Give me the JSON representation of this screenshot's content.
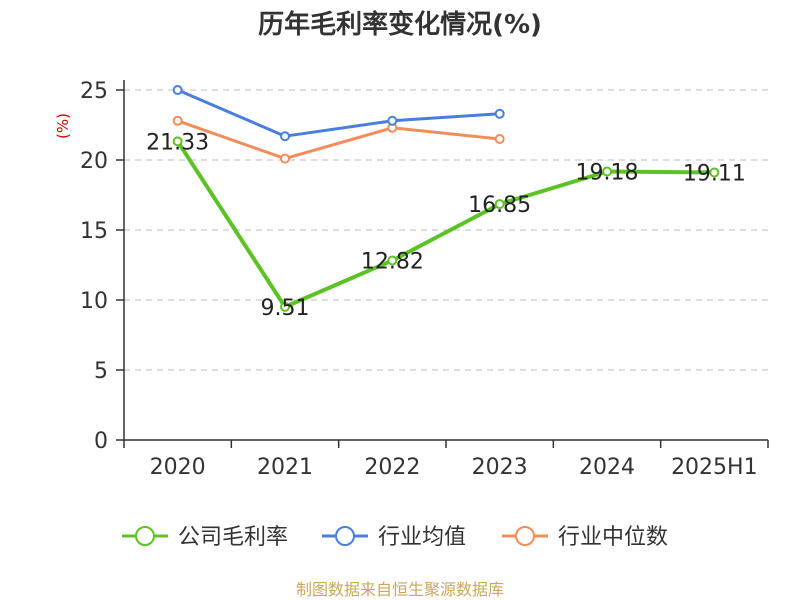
{
  "title": "历年毛利率变化情况(%)",
  "source": "制图数据来自恒生聚源数据库",
  "colors": {
    "company": "#5cc226",
    "industry_avg": "#4a7fd9",
    "industry_median": "#f28c5a",
    "grid": "#bbbbbb",
    "axis": "#333333",
    "unit": "#cc0000",
    "source": "#c8a85a"
  },
  "chart_data": {
    "type": "line",
    "title": "历年毛利率变化情况(%)",
    "ylabel": "(%)",
    "xlabel": "",
    "categories": [
      "2020",
      "2021",
      "2022",
      "2023",
      "2024",
      "2025H1"
    ],
    "ylim": [
      0,
      25
    ],
    "yticks": [
      0,
      5,
      10,
      15,
      20,
      25
    ],
    "grid": true,
    "legend_position": "bottom",
    "series": [
      {
        "name": "公司毛利率",
        "color": "#5cc226",
        "values": [
          21.33,
          9.51,
          12.82,
          16.85,
          19.18,
          19.11
        ],
        "labels": [
          "21.33",
          "9.51",
          "12.82",
          "16.85",
          "19.18",
          "19.11"
        ]
      },
      {
        "name": "行业均值",
        "color": "#4a7fd9",
        "values": [
          25.0,
          21.7,
          22.8,
          23.3,
          null,
          null
        ]
      },
      {
        "name": "行业中位数",
        "color": "#f28c5a",
        "values": [
          22.8,
          20.1,
          22.3,
          21.5,
          null,
          null
        ]
      }
    ]
  }
}
